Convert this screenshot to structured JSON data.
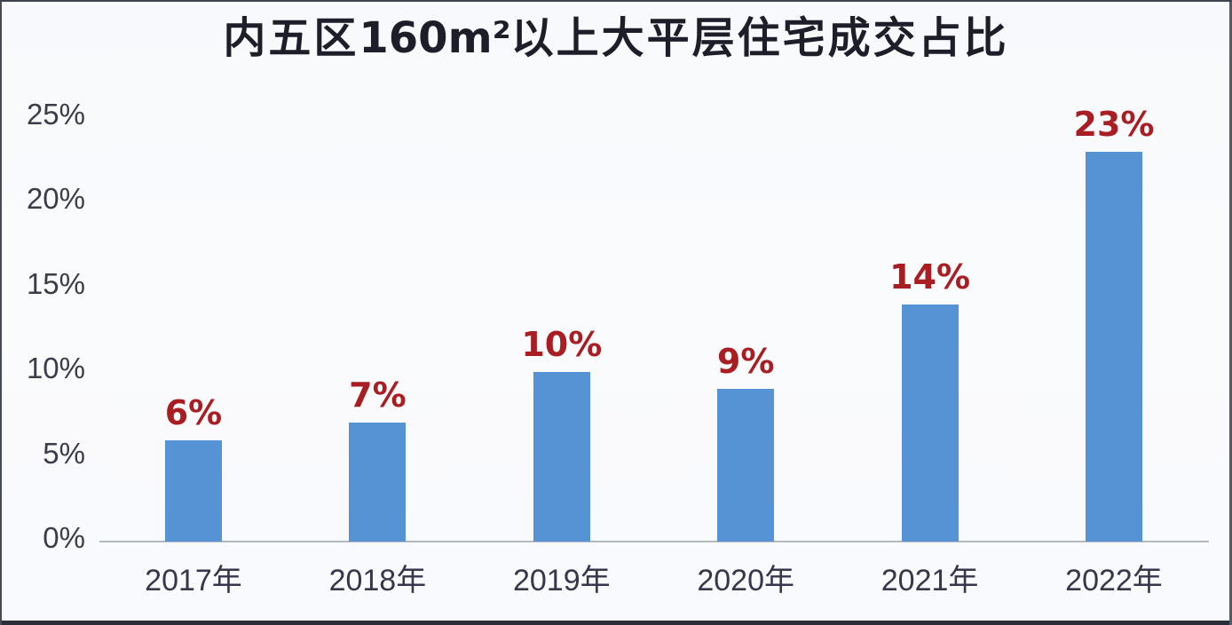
{
  "title": {
    "full": "内五区160㎡以上大平层住宅成交占比",
    "part_prefix": "内五区",
    "part_bold": "160m²",
    "part_suffix": "以上大平层住宅成交占比"
  },
  "chart_data": {
    "type": "bar",
    "title": "内五区160㎡以上大平层住宅成交占比",
    "categories": [
      "2017年",
      "2018年",
      "2019年",
      "2020年",
      "2021年",
      "2022年"
    ],
    "values": [
      6,
      7,
      10,
      9,
      14,
      23
    ],
    "data_labels": [
      "6%",
      "7%",
      "10%",
      "9%",
      "14%",
      "23%"
    ],
    "xlabel": "",
    "ylabel": "",
    "ylim": [
      0,
      25
    ],
    "y_ticks": [
      0,
      5,
      10,
      15,
      20,
      25
    ],
    "y_tick_labels": [
      "0%",
      "5%",
      "10%",
      "15%",
      "20%",
      "25%"
    ],
    "grid": false,
    "legend": false,
    "bar_color": "#5593d4",
    "label_color": "#a91e23",
    "axis_line_color": "#b2b9c3",
    "tick_text_color": "#3b3c4a"
  }
}
